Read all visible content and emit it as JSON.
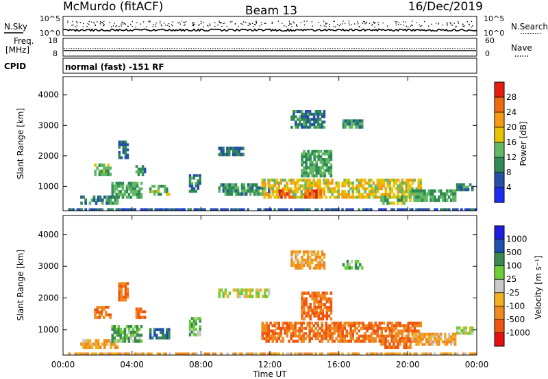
{
  "header": {
    "station": "McMurdo (fitACF)",
    "beam": "Beam 13",
    "date": "16/Dec/2019"
  },
  "strips": {
    "nsky_label": "N.Sky",
    "nsky_ticks": [
      "10^5",
      "10^0"
    ],
    "nsearch_label": "N.Search",
    "nsearch_ticks": [
      "10^5",
      "10^0"
    ],
    "freq_label_1": "Freq.",
    "freq_label_2": "[MHz]",
    "freq_ticks": [
      "18",
      "8"
    ],
    "nave_label": "Nave",
    "nave_ticks": [
      "60",
      "0"
    ],
    "cpid_label": "CPID",
    "cpid_text": "normal (fast) -151 RF"
  },
  "x_axis": {
    "label": "Time UT",
    "ticks": [
      "00:00",
      "04:00",
      "08:00",
      "12:00",
      "16:00",
      "20:00",
      "00:00"
    ]
  },
  "colors": {
    "power": [
      "#1a2df0",
      "#2650a8",
      "#2f8a55",
      "#63b865",
      "#e8c400",
      "#f49a14",
      "#f06a10",
      "#e61e10"
    ],
    "velocity": [
      "#e61010",
      "#f05510",
      "#f08a20",
      "#f2b020",
      "#c8c8c8",
      "#6ccf3a",
      "#3a8a50",
      "#1e50b0",
      "#1e1ee0"
    ]
  },
  "chart_data": [
    {
      "type": "heatmap",
      "name": "power",
      "ylabel": "Slant Range [km]",
      "xlabel": "",
      "y_ticks": [
        "1000",
        "2000",
        "3000",
        "4000"
      ],
      "ylim": [
        200,
        4600
      ],
      "xlim_hours": [
        0,
        24
      ],
      "colorbar": {
        "label": "Power [dB]",
        "range": [
          0,
          32
        ],
        "ticks": [
          "4",
          "8",
          "12",
          "16",
          "20",
          "24",
          "28"
        ]
      },
      "regions": [
        {
          "t": [
            0.3,
            24.0
          ],
          "r": [
            200,
            280
          ],
          "v": 6
        },
        {
          "t": [
            1.0,
            3.2
          ],
          "r": [
            400,
            700
          ],
          "v": 10
        },
        {
          "t": [
            1.8,
            2.8
          ],
          "r": [
            1350,
            1750
          ],
          "v": 14
        },
        {
          "t": [
            2.8,
            4.6
          ],
          "r": [
            600,
            1150
          ],
          "v": 12
        },
        {
          "t": [
            3.2,
            3.8
          ],
          "r": [
            1900,
            2500
          ],
          "v": 8
        },
        {
          "t": [
            4.2,
            4.8
          ],
          "r": [
            1350,
            1700
          ],
          "v": 11
        },
        {
          "t": [
            5.0,
            6.2
          ],
          "r": [
            700,
            1050
          ],
          "v": 13
        },
        {
          "t": [
            7.3,
            8.0
          ],
          "r": [
            800,
            1400
          ],
          "v": 9
        },
        {
          "t": [
            9.0,
            12.0
          ],
          "r": [
            700,
            1100
          ],
          "v": 11
        },
        {
          "t": [
            9.0,
            10.5
          ],
          "r": [
            2000,
            2300
          ],
          "v": 8
        },
        {
          "t": [
            11.5,
            20.8
          ],
          "r": [
            600,
            1250
          ],
          "v": 18
        },
        {
          "t": [
            12.5,
            13.4
          ],
          "r": [
            600,
            900
          ],
          "v": 27
        },
        {
          "t": [
            14.0,
            15.0
          ],
          "r": [
            600,
            900
          ],
          "v": 26
        },
        {
          "t": [
            13.2,
            15.2
          ],
          "r": [
            2900,
            3500
          ],
          "v": 9
        },
        {
          "t": [
            13.8,
            15.6
          ],
          "r": [
            1300,
            2200
          ],
          "v": 12
        },
        {
          "t": [
            16.2,
            17.4
          ],
          "r": [
            2900,
            3200
          ],
          "v": 11
        },
        {
          "t": [
            18.4,
            20.2
          ],
          "r": [
            400,
            700
          ],
          "v": 14
        },
        {
          "t": [
            20.2,
            22.8
          ],
          "r": [
            500,
            900
          ],
          "v": 12
        },
        {
          "t": [
            22.8,
            23.8
          ],
          "r": [
            850,
            1100
          ],
          "v": 10
        }
      ]
    },
    {
      "type": "heatmap",
      "name": "velocity",
      "ylabel": "Slant Range [km]",
      "xlabel": "Time UT",
      "y_ticks": [
        "1000",
        "2000",
        "3000",
        "4000"
      ],
      "ylim": [
        200,
        4600
      ],
      "xlim_hours": [
        0,
        24
      ],
      "colorbar": {
        "label": "Velocity [m s⁻¹]",
        "ticks": [
          "1000",
          "500",
          "100",
          "25",
          "-25",
          "-100",
          "-500",
          "-1000"
        ]
      },
      "regions": [
        {
          "t": [
            0.3,
            24.0
          ],
          "r": [
            200,
            280
          ],
          "v": -100
        },
        {
          "t": [
            1.0,
            3.2
          ],
          "r": [
            400,
            700
          ],
          "v": -100
        },
        {
          "t": [
            1.8,
            2.8
          ],
          "r": [
            1350,
            1750
          ],
          "v": -500
        },
        {
          "t": [
            2.8,
            4.6
          ],
          "r": [
            600,
            1150
          ],
          "v": 100
        },
        {
          "t": [
            3.2,
            3.8
          ],
          "r": [
            1900,
            2500
          ],
          "v": -500
        },
        {
          "t": [
            4.2,
            4.8
          ],
          "r": [
            1350,
            1700
          ],
          "v": -500
        },
        {
          "t": [
            5.0,
            6.2
          ],
          "r": [
            700,
            1050
          ],
          "v": 500
        },
        {
          "t": [
            7.3,
            8.0
          ],
          "r": [
            800,
            1400
          ],
          "v": 100
        },
        {
          "t": [
            9.0,
            12.0
          ],
          "r": [
            2000,
            2300
          ],
          "v": 0
        },
        {
          "t": [
            11.5,
            20.8
          ],
          "r": [
            600,
            1250
          ],
          "v": -500
        },
        {
          "t": [
            13.2,
            15.2
          ],
          "r": [
            2900,
            3500
          ],
          "v": -100
        },
        {
          "t": [
            13.8,
            15.6
          ],
          "r": [
            1300,
            2200
          ],
          "v": -500
        },
        {
          "t": [
            16.2,
            17.4
          ],
          "r": [
            2900,
            3200
          ],
          "v": 100
        },
        {
          "t": [
            18.4,
            20.2
          ],
          "r": [
            400,
            700
          ],
          "v": -500
        },
        {
          "t": [
            20.2,
            22.8
          ],
          "r": [
            500,
            900
          ],
          "v": -100
        },
        {
          "t": [
            22.8,
            23.8
          ],
          "r": [
            850,
            1100
          ],
          "v": 0
        }
      ]
    }
  ]
}
